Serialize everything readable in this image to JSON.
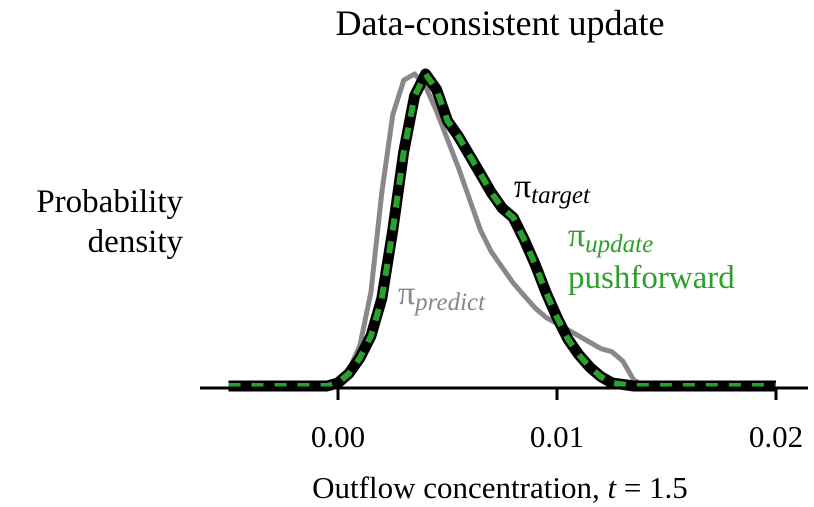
{
  "chart_data": {
    "type": "line",
    "title": "Data-consistent update",
    "ylabel_lines": [
      "Probability",
      "density"
    ],
    "xlabel": {
      "prefix": "Outflow concentration, ",
      "var": "t",
      "suffix": " = 1.5"
    },
    "xlim": [
      -0.0055,
      0.0205
    ],
    "ylim": [
      0,
      1.0
    ],
    "xticks": [
      0.0,
      0.01,
      0.02
    ],
    "xtick_labels": [
      "0.00",
      "0.01",
      "0.02"
    ],
    "grid": false,
    "legend": "inline labels",
    "series": [
      {
        "key": "predict",
        "symbol": "π",
        "subscript": "predict",
        "color": "#888888",
        "style": "solid",
        "x": [
          -0.005,
          -0.001,
          0.0,
          0.0005,
          0.001,
          0.0015,
          0.002,
          0.0025,
          0.003,
          0.0035,
          0.004,
          0.0045,
          0.005,
          0.0055,
          0.006,
          0.0065,
          0.007,
          0.0075,
          0.008,
          0.0085,
          0.009,
          0.0095,
          0.01,
          0.0105,
          0.011,
          0.0115,
          0.012,
          0.0125,
          0.013,
          0.0135,
          0.014,
          0.02
        ],
        "y": [
          0.0,
          0.0,
          0.01,
          0.05,
          0.13,
          0.3,
          0.62,
          0.87,
          0.98,
          1.0,
          0.96,
          0.88,
          0.79,
          0.7,
          0.6,
          0.5,
          0.43,
          0.38,
          0.33,
          0.29,
          0.25,
          0.22,
          0.2,
          0.18,
          0.16,
          0.14,
          0.12,
          0.11,
          0.08,
          0.02,
          0.0,
          0.0
        ]
      },
      {
        "key": "target",
        "symbol": "π",
        "subscript": "target",
        "color": "#000000",
        "style": "solid",
        "x": [
          -0.005,
          -0.0005,
          0.0,
          0.0005,
          0.001,
          0.0015,
          0.002,
          0.0025,
          0.003,
          0.0035,
          0.004,
          0.0045,
          0.005,
          0.0055,
          0.006,
          0.0065,
          0.007,
          0.0075,
          0.008,
          0.0085,
          0.009,
          0.0095,
          0.01,
          0.0105,
          0.011,
          0.0115,
          0.012,
          0.0125,
          0.013,
          0.0135,
          0.02
        ],
        "y": [
          0.0,
          0.0,
          0.01,
          0.04,
          0.09,
          0.16,
          0.28,
          0.5,
          0.75,
          0.93,
          1.0,
          0.95,
          0.85,
          0.8,
          0.74,
          0.68,
          0.62,
          0.57,
          0.54,
          0.47,
          0.39,
          0.3,
          0.22,
          0.15,
          0.1,
          0.06,
          0.03,
          0.01,
          0.005,
          0.0,
          0.0
        ]
      },
      {
        "key": "update",
        "symbol": "π",
        "subscript": "update",
        "extra_label": "pushforward",
        "color": "#2ca02c",
        "style": "dashed",
        "x": [
          -0.005,
          -0.0005,
          0.0,
          0.0005,
          0.001,
          0.0015,
          0.002,
          0.0025,
          0.003,
          0.0035,
          0.004,
          0.0045,
          0.005,
          0.0055,
          0.006,
          0.0065,
          0.007,
          0.0075,
          0.008,
          0.0085,
          0.009,
          0.0095,
          0.01,
          0.0105,
          0.011,
          0.0115,
          0.012,
          0.0125,
          0.013,
          0.0135,
          0.02
        ],
        "y": [
          0.0,
          0.0,
          0.01,
          0.04,
          0.09,
          0.16,
          0.28,
          0.5,
          0.75,
          0.93,
          1.0,
          0.95,
          0.85,
          0.8,
          0.74,
          0.68,
          0.62,
          0.57,
          0.54,
          0.47,
          0.39,
          0.3,
          0.22,
          0.15,
          0.1,
          0.06,
          0.03,
          0.01,
          0.005,
          0.0,
          0.0
        ]
      }
    ]
  }
}
